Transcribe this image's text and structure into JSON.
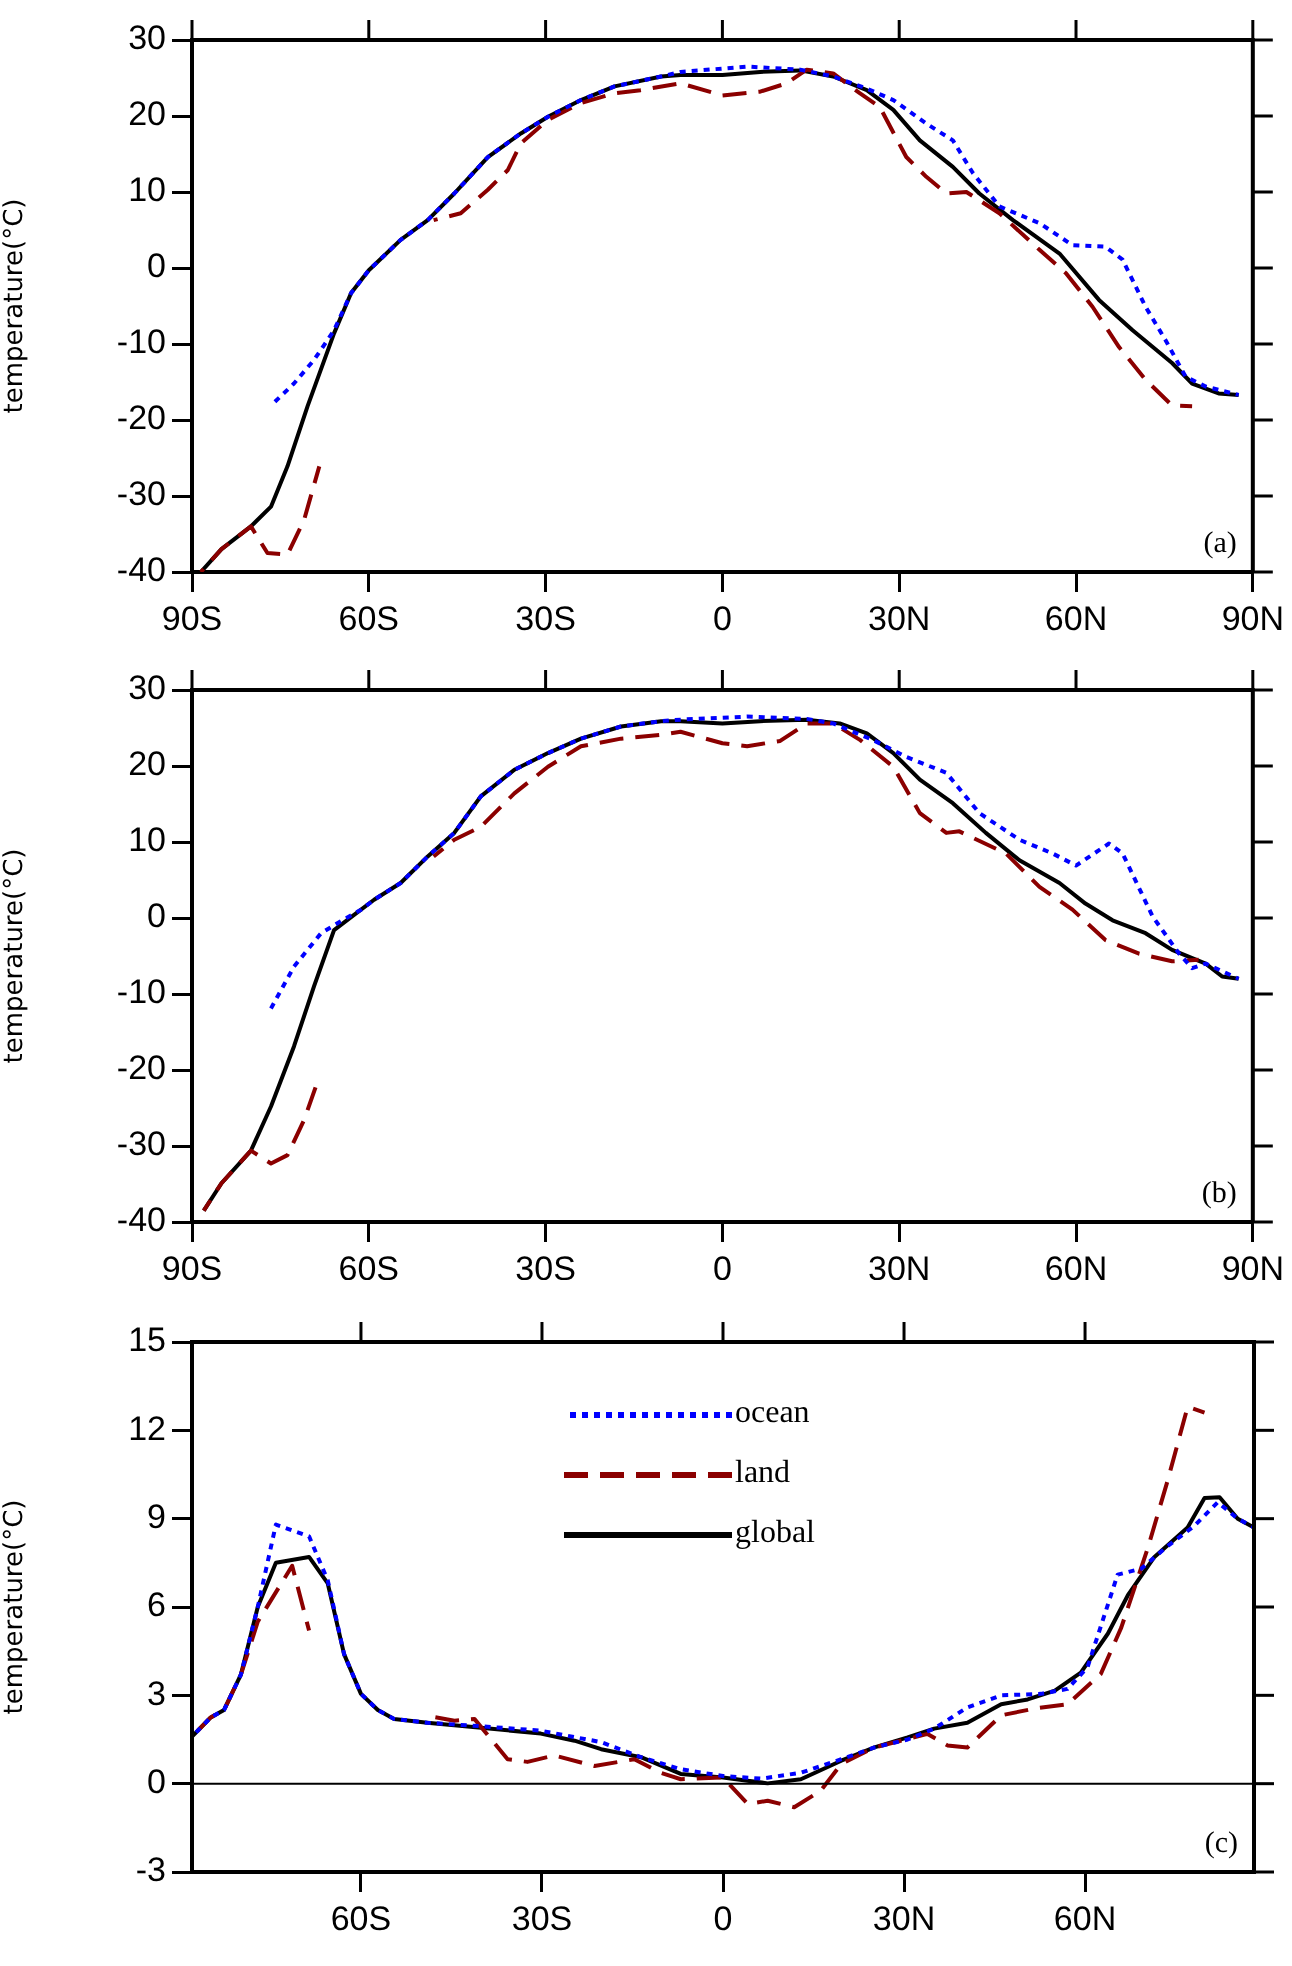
{
  "chart_data": [
    {
      "type": "line",
      "ylabel": "temperature(°C)",
      "annotations": [
        "(a)"
      ],
      "xlim": [
        -90,
        90
      ],
      "xticks": [
        {
          "value": -90,
          "label": "90S"
        },
        {
          "value": -60,
          "label": "60S"
        },
        {
          "value": -30,
          "label": "30S"
        },
        {
          "value": 0,
          "label": "0"
        },
        {
          "value": 30,
          "label": "30N"
        },
        {
          "value": 60,
          "label": "60N"
        },
        {
          "value": 90,
          "label": "90N"
        }
      ],
      "ylim": [
        -40,
        30
      ],
      "yticks": [
        -40,
        -30,
        -20,
        -10,
        0,
        10,
        20,
        30
      ],
      "marker": "none",
      "series": [
        {
          "color": "#0000ff",
          "line_style": "dotted",
          "x": [
            -76.6,
            -72.7,
            -69.3,
            -65.9,
            -63,
            -60,
            -54.6,
            -50,
            -45.5,
            -39.8,
            -34.2,
            -29.6,
            -24,
            -18.3,
            -10.4,
            -7.1,
            4.2,
            13.2,
            18.8,
            24.5,
            29,
            34.6,
            39.1,
            42.5,
            47,
            53.8,
            59.4,
            65,
            67.9,
            71.8,
            75.2,
            78.6,
            82,
            87.6
          ],
          "values": [
            -18.1,
            -15.2,
            -12.1,
            -8.2,
            -3.3,
            -0.3,
            3.7,
            6.3,
            9.8,
            14.6,
            17.7,
            19.9,
            22.1,
            23.9,
            25.2,
            25.8,
            26.5,
            26.1,
            25.2,
            23.6,
            22.1,
            19.0,
            16.8,
            12.5,
            8.1,
            5.9,
            3.0,
            2.8,
            1.1,
            -5.1,
            -9.5,
            -14.3,
            -15.6,
            -16.7
          ]
        },
        {
          "color": "#8b0000",
          "line_style": "dashed",
          "x": [
            -88.5,
            -85,
            -80,
            -77.2,
            -73.8,
            -71,
            -68.4,
            -60,
            -49,
            -44.4,
            -39.8,
            -36.4,
            -34.2,
            -29.6,
            -24,
            -18.3,
            -13.9,
            -7.1,
            0,
            6.4,
            10.9,
            14.3,
            18.8,
            23.3,
            26.7,
            31.2,
            34.6,
            38,
            41.4,
            47,
            53.8,
            58.3,
            62.8,
            67.3,
            71.8,
            76.3,
            79.7
          ],
          "values": [
            -40,
            -37,
            -34,
            -37.5,
            -37.7,
            -33.2,
            -26.1,
            null,
            6.3,
            7.2,
            10.3,
            12.9,
            16.4,
            19.5,
            21.7,
            23.0,
            23.4,
            24.3,
            22.7,
            23.2,
            24.3,
            26.1,
            25.6,
            23.0,
            21.2,
            14.6,
            12.0,
            9.8,
            10.0,
            7.2,
            2.4,
            -0.7,
            -5.1,
            -10.4,
            -14.7,
            -18.1,
            -18.2
          ]
        },
        {
          "color": "#000000",
          "line_style": "solid",
          "x": [
            -88.5,
            -85,
            -80,
            -76.6,
            -73.8,
            -70.4,
            -65.9,
            -63,
            -60,
            -54.6,
            -50,
            -45.5,
            -39.8,
            -34.2,
            -29.6,
            -24,
            -18.3,
            -10.4,
            -7.1,
            0,
            6.4,
            13.2,
            18.8,
            24.5,
            29,
            33.5,
            39.1,
            43.6,
            49.3,
            57.2,
            63.9,
            69.6,
            76.3,
            79.7,
            84.2,
            87.6
          ],
          "values": [
            -40,
            -37,
            -34,
            -31.4,
            -26.1,
            -18.2,
            -8.6,
            -3.3,
            -0.3,
            3.7,
            6.3,
            9.8,
            14.6,
            17.7,
            19.9,
            22.1,
            23.9,
            25.2,
            25.4,
            25.4,
            25.8,
            26.0,
            25.2,
            23.4,
            20.8,
            16.8,
            13.3,
            9.8,
            6.3,
            1.9,
            -4.2,
            -8.2,
            -12.5,
            -15.2,
            -16.5,
            -16.7
          ]
        }
      ]
    },
    {
      "type": "line",
      "ylabel": "temperature(°C)",
      "annotations": [
        "(b)"
      ],
      "xlim": [
        -90,
        90
      ],
      "xticks": [
        {
          "value": -90,
          "label": "90S"
        },
        {
          "value": -60,
          "label": "60S"
        },
        {
          "value": -30,
          "label": "30S"
        },
        {
          "value": 0,
          "label": "0"
        },
        {
          "value": 30,
          "label": "30N"
        },
        {
          "value": 60,
          "label": "60N"
        },
        {
          "value": 90,
          "label": "90N"
        }
      ],
      "ylim": [
        -40,
        30
      ],
      "yticks": [
        -40,
        -30,
        -20,
        -10,
        0,
        10,
        20,
        30
      ],
      "marker": "none",
      "series": [
        {
          "color": "#0000ff",
          "line_style": "dotted",
          "x": [
            -76.6,
            -72.7,
            -68.1,
            -64.7,
            -61.3,
            -59.1,
            -54.6,
            -50,
            -45.5,
            -41,
            -35.3,
            -29.6,
            -24,
            -17.2,
            -10.4,
            -7.1,
            4.2,
            14.3,
            18.8,
            25.6,
            31.2,
            38,
            43.6,
            50.4,
            56,
            60,
            65.6,
            67.9,
            73,
            77.5,
            79.7,
            82,
            87.6
          ],
          "values": [
            -11.9,
            -6.4,
            -2.0,
            -0.4,
            1.1,
            2.4,
            4.6,
            8.1,
            11.2,
            16.0,
            19.5,
            21.7,
            23.6,
            25.2,
            25.9,
            26.1,
            26.5,
            26.2,
            25.6,
            23.4,
            21.2,
            19.1,
            13.8,
            10.3,
            8.5,
            6.9,
            9.8,
            8.5,
            0.2,
            -4.7,
            -6.6,
            -6.0,
            -8.0
          ]
        },
        {
          "color": "#8b0000",
          "line_style": "dashed",
          "x": [
            -88,
            -85,
            -80,
            -76.6,
            -73.8,
            -71,
            -68.4,
            -60,
            -49,
            -45.5,
            -41,
            -35.3,
            -29.6,
            -24,
            -17.2,
            -10.4,
            -7.1,
            0,
            4.2,
            9.8,
            14.3,
            18.8,
            23.4,
            29,
            33.5,
            38,
            40.2,
            48.1,
            53.8,
            59.4,
            65,
            70.7,
            76.3,
            80.8
          ],
          "values": [
            -38.5,
            -34.9,
            -30.6,
            -32.3,
            -31.2,
            -26.6,
            -20.9,
            null,
            8.1,
            10.3,
            12.0,
            16.4,
            19.9,
            22.6,
            23.6,
            24.1,
            24.5,
            23.0,
            22.6,
            23.3,
            25.6,
            25.6,
            23.4,
            19.9,
            13.8,
            11.2,
            11.4,
            8.5,
            4.1,
            1.1,
            -2.9,
            -4.7,
            -5.7,
            -5.5
          ]
        },
        {
          "color": "#000000",
          "line_style": "solid",
          "x": [
            -88,
            -85,
            -80,
            -76.6,
            -72.7,
            -69.3,
            -65.9,
            -62.5,
            -59.1,
            -54.6,
            -50,
            -45.5,
            -41,
            -35.3,
            -29.6,
            -24,
            -17.2,
            -10.4,
            -7.1,
            0,
            6.4,
            14.3,
            19.9,
            24.5,
            29,
            33.5,
            39.1,
            44.7,
            50.4,
            57.2,
            61.6,
            66.2,
            71.8,
            76.3,
            82,
            84.8,
            87.6
          ],
          "values": [
            -38.5,
            -34.9,
            -30.6,
            -24.8,
            -16.9,
            -9.0,
            -1.6,
            0.4,
            2.4,
            4.6,
            8.1,
            11.2,
            16.0,
            19.5,
            21.7,
            23.6,
            25.2,
            25.9,
            25.9,
            25.6,
            25.9,
            26.1,
            25.6,
            24.3,
            21.7,
            18.2,
            15.1,
            11.2,
            7.6,
            4.6,
            1.9,
            -0.3,
            -2.0,
            -4.2,
            -6.0,
            -7.7,
            -8.0
          ]
        }
      ]
    },
    {
      "type": "line",
      "ylabel": "temperature(°C)",
      "annotations": [
        "(c)"
      ],
      "xlim": [
        -88,
        88
      ],
      "xticks": [
        {
          "value": -60,
          "label": "60S"
        },
        {
          "value": -30,
          "label": "30S"
        },
        {
          "value": 0,
          "label": "0"
        },
        {
          "value": 30,
          "label": "30N"
        },
        {
          "value": 60,
          "label": "60N"
        }
      ],
      "ylim": [
        -3,
        15
      ],
      "yticks": [
        -3,
        0,
        3,
        6,
        9,
        12,
        15
      ],
      "marker": "none",
      "legend": "top",
      "ref_lines": [
        {
          "axis": "y",
          "value": 0,
          "color": "#000000"
        }
      ],
      "series": [
        {
          "name": "ocean",
          "color": "#0000ff",
          "line_style": "dotted",
          "x": [
            -88,
            -84.9,
            -82.7,
            -79.9,
            -77.1,
            -74.1,
            -68.6,
            -65.5,
            -62.8,
            -60,
            -57.2,
            -54.5,
            -49,
            -40.1,
            -30.2,
            -20.2,
            -13.6,
            -7,
            0,
            6.3,
            12.9,
            19.6,
            25.1,
            30.6,
            35,
            40.5,
            46.1,
            52.7,
            57.1,
            60.4,
            65.4,
            69.3,
            73.7,
            78.1,
            82,
            85.3,
            88
          ],
          "values": [
            1.6,
            2.25,
            2.5,
            3.7,
            6.0,
            8.8,
            8.4,
            6.9,
            4.4,
            3.05,
            2.5,
            2.2,
            2.07,
            1.95,
            1.8,
            1.41,
            0.9,
            0.49,
            0.26,
            0.17,
            0.37,
            0.83,
            1.23,
            1.5,
            1.87,
            2.59,
            3.0,
            3.05,
            3.22,
            3.95,
            7.1,
            7.3,
            8.07,
            8.75,
            9.56,
            9.0,
            8.7
          ]
        },
        {
          "name": "land",
          "color": "#8b0000",
          "line_style": "dashed",
          "x": [
            -88,
            -84.9,
            -82.7,
            -79.9,
            -77.1,
            -71.4,
            -68.6,
            -60,
            -49,
            -44.5,
            -41.2,
            -35.7,
            -32.4,
            -28,
            -21.3,
            -14.7,
            -10.3,
            -7,
            0,
            4.1,
            7.4,
            11.8,
            16.2,
            19.6,
            25.1,
            33.9,
            37.2,
            40.5,
            46.1,
            51.6,
            57.1,
            62.6,
            66,
            70.4,
            73.7,
            77,
            79.8
          ],
          "values": [
            1.6,
            2.25,
            2.5,
            3.7,
            5.5,
            7.4,
            5.2,
            null,
            2.3,
            2.14,
            2.2,
            0.83,
            0.74,
            0.96,
            0.6,
            0.83,
            0.37,
            0.15,
            0.21,
            -0.69,
            -0.58,
            -0.8,
            -0.24,
            0.67,
            1.23,
            1.69,
            1.3,
            1.23,
            2.32,
            2.55,
            2.7,
            3.72,
            5.3,
            8.0,
            10.3,
            12.8,
            12.6
          ]
        },
        {
          "name": "global",
          "color": "#000000",
          "line_style": "solid",
          "x": [
            -88,
            -84.9,
            -82.7,
            -79.9,
            -77.1,
            -74.1,
            -68.6,
            -65.5,
            -62.8,
            -60,
            -57.2,
            -54.5,
            -49,
            -40.1,
            -30.2,
            -24.6,
            -20.2,
            -13.6,
            -7,
            0,
            7.4,
            12.9,
            19.6,
            25.1,
            30.6,
            35,
            40.5,
            46.1,
            50.5,
            55,
            59.3,
            63.8,
            67.1,
            71.5,
            77,
            79.8,
            82.3,
            85.3,
            88
          ],
          "values": [
            1.6,
            2.25,
            2.5,
            3.7,
            6.0,
            7.5,
            7.7,
            6.8,
            4.4,
            3.05,
            2.5,
            2.2,
            2.07,
            1.9,
            1.7,
            1.46,
            1.17,
            0.9,
            0.33,
            0.21,
            0.01,
            0.15,
            0.78,
            1.23,
            1.57,
            1.87,
            2.07,
            2.7,
            2.86,
            3.16,
            3.77,
            5.1,
            6.4,
            7.7,
            8.7,
            9.7,
            9.73,
            9.0,
            8.7
          ]
        }
      ]
    }
  ]
}
